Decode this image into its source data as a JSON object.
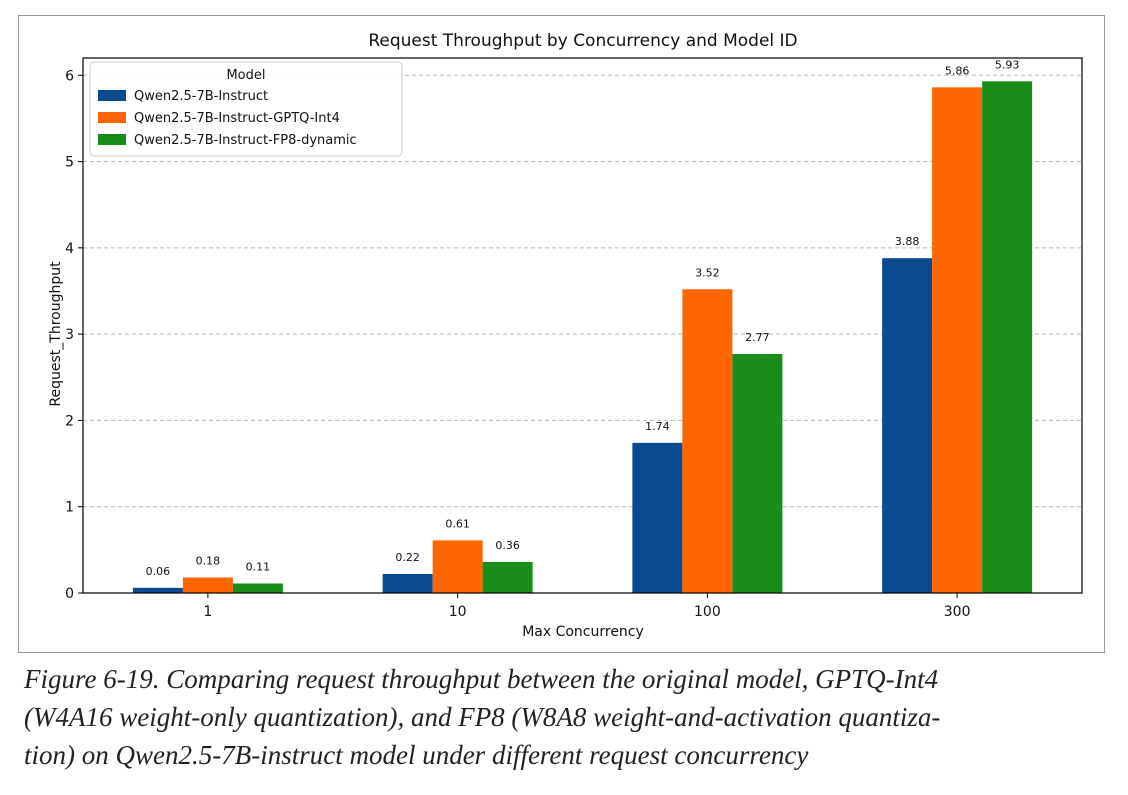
{
  "chart_data": {
    "type": "bar",
    "title": "Request Throughput by Concurrency and Model ID",
    "xlabel": "Max Concurrency",
    "ylabel": "Request_Throughput",
    "categories": [
      "1",
      "10",
      "100",
      "300"
    ],
    "ylim": [
      0,
      6.2
    ],
    "yticks": [
      "0",
      "1",
      "2",
      "3",
      "4",
      "5",
      "6"
    ],
    "grid": "horizontal dashed",
    "legend": {
      "title": "Model",
      "placement": "top-left"
    },
    "series": [
      {
        "name": "Qwen2.5-7B-Instruct",
        "color": "#0a4a91",
        "values": [
          0.06,
          0.22,
          1.74,
          3.88
        ],
        "labels": [
          "0.06",
          "0.22",
          "1.74",
          "3.88"
        ]
      },
      {
        "name": "Qwen2.5-7B-Instruct-GPTQ-Int4",
        "color": "#ff6600",
        "values": [
          0.18,
          0.61,
          3.52,
          5.86
        ],
        "labels": [
          "0.18",
          "0.61",
          "3.52",
          "5.86"
        ]
      },
      {
        "name": "Qwen2.5-7B-Instruct-FP8-dynamic",
        "color": "#1a8c1a",
        "values": [
          0.11,
          0.36,
          2.77,
          5.93
        ],
        "labels": [
          "0.11",
          "0.36",
          "2.77",
          "5.93"
        ]
      }
    ]
  },
  "caption": {
    "lines": [
      "Figure 6-19. Comparing request throughput between the original model, GPTQ-Int4",
      "(W4A16 weight-only quantization), and FP8 (W8A8 weight-and-activation quantiza-",
      "tion) on Qwen2.5-7B-instruct model under different request concurrency"
    ]
  }
}
